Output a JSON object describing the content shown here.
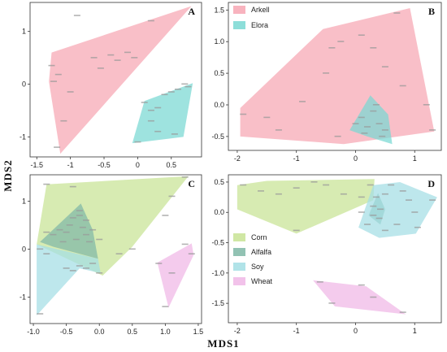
{
  "figure": {
    "xlabel": "MDS1",
    "ylabel": "MDS2"
  },
  "colors": {
    "Arkell": "#f7a6b3",
    "Elora": "#79d8d2",
    "Corn": "#c8e394",
    "Alfalfa": "#7fb7a6",
    "Soy": "#a3dee4",
    "Wheat": "#f0b7e6"
  },
  "chart_data": [
    {
      "type": "scatter",
      "panel": "A",
      "xlim": [
        -1.6,
        0.95
      ],
      "ylim": [
        -1.38,
        1.55
      ],
      "xticks": [
        -1.5,
        -1,
        -0.5,
        0,
        0.5
      ],
      "yticks": [
        -1,
        0,
        1
      ],
      "xtick_labels": [
        "-1.5",
        "-1",
        "-0.5",
        "0",
        "0.5"
      ],
      "ytick_labels": [
        "-1",
        "0",
        "1"
      ],
      "legend": [],
      "series": [
        {
          "name": "Arkell",
          "hull": [
            [
              -1.15,
              -1.32
            ],
            [
              -1.32,
              0.05
            ],
            [
              -1.28,
              0.6
            ],
            [
              0.8,
              1.48
            ]
          ],
          "points": [
            [
              -0.9,
              1.3
            ],
            [
              -1.28,
              0.35
            ],
            [
              -1.25,
              0.05
            ],
            [
              -1.18,
              0.18
            ],
            [
              -1.0,
              -0.15
            ],
            [
              -0.65,
              0.5
            ],
            [
              -0.55,
              0.3
            ],
            [
              -0.4,
              0.55
            ],
            [
              -0.3,
              0.45
            ],
            [
              -0.15,
              0.6
            ],
            [
              -0.05,
              0.5
            ],
            [
              -1.1,
              -0.7
            ],
            [
              -1.2,
              -1.2
            ],
            [
              0.2,
              1.2
            ]
          ]
        },
        {
          "name": "Elora",
          "hull": [
            [
              -0.08,
              -1.12
            ],
            [
              0.68,
              -1.0
            ],
            [
              0.82,
              0.02
            ],
            [
              0.1,
              -0.32
            ]
          ],
          "points": [
            [
              0.1,
              -0.35
            ],
            [
              0.2,
              -0.5
            ],
            [
              0.3,
              -0.45
            ],
            [
              0.4,
              -0.2
            ],
            [
              0.5,
              -0.15
            ],
            [
              0.6,
              -0.1
            ],
            [
              0.7,
              0.0
            ],
            [
              0.2,
              -0.7
            ],
            [
              0.3,
              -0.9
            ],
            [
              0.0,
              -1.1
            ],
            [
              0.55,
              -0.95
            ],
            [
              0.75,
              -0.05
            ]
          ]
        }
      ]
    },
    {
      "type": "scatter",
      "panel": "B",
      "xlim": [
        -2.15,
        1.45
      ],
      "ylim": [
        -0.72,
        1.62
      ],
      "xticks": [
        -2,
        -1,
        0,
        1
      ],
      "yticks": [
        -0.5,
        0,
        0.5,
        1,
        1.5
      ],
      "xtick_labels": [
        "-2",
        "-1",
        "0",
        "1"
      ],
      "ytick_labels": [
        "-0.5",
        "0.0",
        "0.5",
        "1.0",
        "1.5"
      ],
      "legend": [
        "Arkell",
        "Elora"
      ],
      "series": [
        {
          "name": "Arkell",
          "hull": [
            [
              -1.95,
              -0.5
            ],
            [
              -1.95,
              -0.05
            ],
            [
              -0.55,
              1.2
            ],
            [
              0.92,
              1.53
            ],
            [
              1.33,
              -0.42
            ],
            [
              -0.2,
              -0.62
            ]
          ],
          "points": [
            [
              -1.9,
              -0.15
            ],
            [
              -1.5,
              -0.2
            ],
            [
              -1.3,
              -0.4
            ],
            [
              -0.9,
              0.05
            ],
            [
              -0.5,
              0.5
            ],
            [
              -0.4,
              0.9
            ],
            [
              -0.25,
              1.0
            ],
            [
              0.1,
              1.1
            ],
            [
              0.3,
              0.9
            ],
            [
              0.7,
              1.45
            ],
            [
              0.5,
              0.6
            ],
            [
              0.8,
              0.3
            ],
            [
              1.2,
              0.0
            ],
            [
              1.3,
              -0.4
            ],
            [
              -0.3,
              -0.5
            ]
          ]
        },
        {
          "name": "Elora",
          "hull": [
            [
              -0.1,
              -0.4
            ],
            [
              0.25,
              0.15
            ],
            [
              0.55,
              -0.15
            ],
            [
              0.62,
              -0.62
            ],
            [
              0.2,
              -0.5
            ]
          ],
          "points": [
            [
              0.0,
              -0.3
            ],
            [
              0.1,
              -0.2
            ],
            [
              0.2,
              -0.35
            ],
            [
              0.3,
              -0.1
            ],
            [
              0.35,
              0.0
            ],
            [
              0.4,
              -0.3
            ],
            [
              0.45,
              -0.5
            ],
            [
              0.5,
              -0.4
            ],
            [
              0.15,
              -0.45
            ]
          ]
        }
      ]
    },
    {
      "type": "scatter",
      "panel": "C",
      "xlim": [
        -1.05,
        1.55
      ],
      "ylim": [
        -1.55,
        1.55
      ],
      "xticks": [
        -1,
        -0.5,
        0,
        0.5,
        1,
        1.5
      ],
      "yticks": [
        -1,
        0,
        1
      ],
      "xtick_labels": [
        "-1.0",
        "-0.5",
        "0.0",
        "0.5",
        "1.0",
        "1.5"
      ],
      "ytick_labels": [
        "-1",
        "0",
        "1"
      ],
      "legend": [],
      "series": [
        {
          "name": "Corn",
          "hull": [
            [
              -0.95,
              0.1
            ],
            [
              -0.8,
              1.35
            ],
            [
              1.35,
              1.52
            ],
            [
              0.5,
              0.05
            ],
            [
              0.05,
              -0.55
            ]
          ],
          "points": [
            [
              -0.8,
              1.35
            ],
            [
              -0.4,
              1.3
            ],
            [
              1.1,
              1.1
            ],
            [
              1.3,
              1.5
            ],
            [
              -0.3,
              0.8
            ],
            [
              -0.2,
              0.6
            ],
            [
              -0.1,
              0.4
            ],
            [
              0.0,
              0.2
            ],
            [
              0.3,
              -0.1
            ],
            [
              0.5,
              0.0
            ],
            [
              1.0,
              0.7
            ],
            [
              0.0,
              -0.5
            ]
          ]
        },
        {
          "name": "Alfalfa",
          "hull": [
            [
              -0.9,
              0.15
            ],
            [
              -0.28,
              0.95
            ],
            [
              -0.1,
              0.4
            ],
            [
              -0.02,
              -0.2
            ],
            [
              -0.7,
              0.05
            ]
          ],
          "points": [
            [
              -0.8,
              0.35
            ],
            [
              -0.7,
              0.3
            ],
            [
              -0.6,
              0.4
            ],
            [
              -0.5,
              0.35
            ],
            [
              -0.45,
              0.5
            ],
            [
              -0.4,
              0.65
            ],
            [
              -0.3,
              0.7
            ],
            [
              -0.25,
              0.45
            ],
            [
              -0.2,
              0.3
            ],
            [
              -0.15,
              0.15
            ],
            [
              -0.35,
              0.2
            ],
            [
              -0.55,
              0.15
            ]
          ]
        },
        {
          "name": "Soy",
          "hull": [
            [
              -0.95,
              -1.38
            ],
            [
              -0.95,
              0.1
            ],
            [
              -0.02,
              -0.2
            ],
            [
              0.02,
              -0.5
            ],
            [
              -0.3,
              -0.4
            ]
          ],
          "points": [
            [
              -0.9,
              -1.35
            ],
            [
              -0.5,
              -0.4
            ],
            [
              -0.4,
              -0.45
            ],
            [
              -0.3,
              -0.35
            ],
            [
              -0.2,
              -0.4
            ],
            [
              -0.1,
              -0.3
            ],
            [
              -0.9,
              0.0
            ],
            [
              -0.8,
              -0.1
            ]
          ]
        },
        {
          "name": "Wheat",
          "hull": [
            [
              0.88,
              -0.28
            ],
            [
              1.05,
              -1.22
            ],
            [
              1.43,
              -0.12
            ],
            [
              1.4,
              0.12
            ]
          ],
          "points": [
            [
              0.9,
              -0.3
            ],
            [
              1.3,
              0.1
            ],
            [
              1.4,
              -0.1
            ],
            [
              1.0,
              -1.2
            ],
            [
              1.1,
              -0.5
            ]
          ]
        }
      ]
    },
    {
      "type": "scatter",
      "panel": "D",
      "xlim": [
        -2.15,
        1.45
      ],
      "ylim": [
        -1.82,
        0.62
      ],
      "xticks": [
        -2,
        -1,
        0,
        1
      ],
      "yticks": [
        -1.5,
        -1,
        -0.5,
        0,
        0.5
      ],
      "xtick_labels": [
        "-2",
        "-1",
        "0",
        "1"
      ],
      "ytick_labels": [
        "-1.5",
        "-1.0",
        "-0.5",
        "0.0",
        "0.5"
      ],
      "legend": [
        "Corn",
        "Alfalfa",
        "Soy",
        "Wheat"
      ],
      "series": [
        {
          "name": "Corn",
          "hull": [
            [
              -2.0,
              0.45
            ],
            [
              -2.0,
              0.05
            ],
            [
              -1.0,
              -0.35
            ],
            [
              0.3,
              0.2
            ],
            [
              0.32,
              0.55
            ],
            [
              -1.5,
              0.52
            ]
          ],
          "points": [
            [
              -1.9,
              0.45
            ],
            [
              -1.6,
              0.35
            ],
            [
              -1.3,
              0.3
            ],
            [
              -1.0,
              0.4
            ],
            [
              -0.7,
              0.5
            ],
            [
              -0.5,
              0.45
            ],
            [
              -0.2,
              0.3
            ],
            [
              -1.0,
              -0.3
            ],
            [
              0.1,
              0.25
            ],
            [
              0.25,
              0.45
            ]
          ]
        },
        {
          "name": "Alfalfa",
          "hull": [
            [
              0.22,
              -0.05
            ],
            [
              0.38,
              0.32
            ],
            [
              0.5,
              0.05
            ],
            [
              0.42,
              -0.2
            ]
          ],
          "points": [
            [
              0.3,
              0.1
            ],
            [
              0.35,
              0.25
            ],
            [
              0.42,
              0.05
            ],
            [
              0.4,
              -0.1
            ],
            [
              0.3,
              -0.05
            ]
          ]
        },
        {
          "name": "Soy",
          "hull": [
            [
              0.05,
              -0.25
            ],
            [
              0.3,
              0.45
            ],
            [
              0.75,
              0.5
            ],
            [
              1.38,
              0.25
            ],
            [
              1.02,
              -0.35
            ],
            [
              0.4,
              -0.42
            ]
          ],
          "points": [
            [
              0.1,
              0.0
            ],
            [
              0.2,
              -0.2
            ],
            [
              0.5,
              0.3
            ],
            [
              0.6,
              0.45
            ],
            [
              0.8,
              0.35
            ],
            [
              0.9,
              0.2
            ],
            [
              1.0,
              0.0
            ],
            [
              1.05,
              -0.25
            ],
            [
              1.3,
              0.2
            ],
            [
              0.5,
              -0.3
            ],
            [
              0.7,
              -0.2
            ]
          ]
        },
        {
          "name": "Wheat",
          "hull": [
            [
              -0.72,
              -1.12
            ],
            [
              0.18,
              -1.22
            ],
            [
              0.85,
              -1.68
            ],
            [
              -0.35,
              -1.55
            ]
          ],
          "points": [
            [
              -0.6,
              -1.15
            ],
            [
              -0.4,
              -1.5
            ],
            [
              0.1,
              -1.2
            ],
            [
              0.3,
              -1.4
            ],
            [
              0.8,
              -1.65
            ]
          ]
        }
      ]
    }
  ]
}
